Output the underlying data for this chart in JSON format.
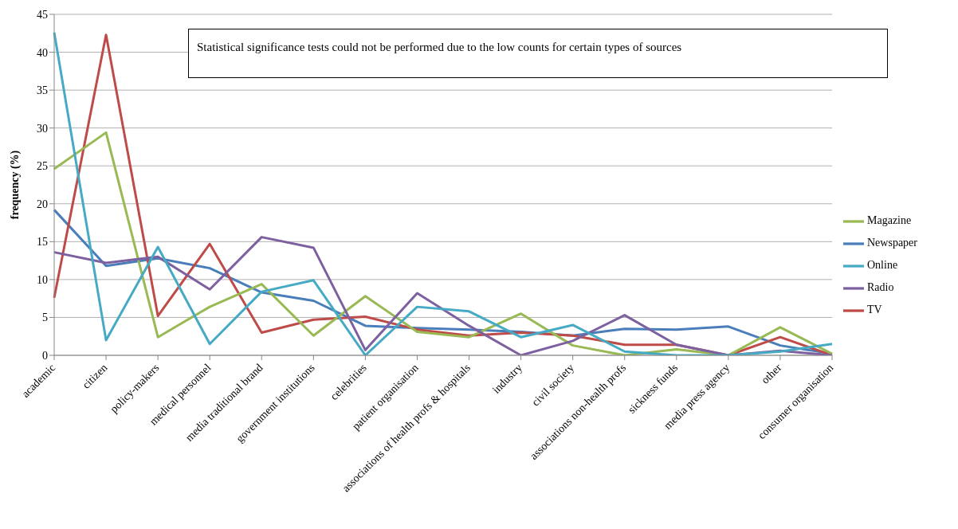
{
  "chart_data": {
    "type": "line",
    "ylabel": "frequency (%)",
    "annotations": [
      "Statistical significance tests could not be performed due to the low counts for certain types of sources"
    ],
    "categories": [
      "academic",
      "citizen",
      "policy-makers",
      "medical personnel",
      "media traditional brand",
      "government institutions",
      "celebrities",
      "patient organisation",
      "associations of health profs & hospitals",
      "industry",
      "civil society",
      "associations non-health profs",
      "sickness funds",
      "media press agency",
      "other",
      "consumer organisation"
    ],
    "series": [
      {
        "name": "Newspaper",
        "color": "#4a7ebb",
        "values": [
          19.2,
          11.8,
          12.8,
          11.5,
          8.3,
          7.2,
          3.9,
          3.6,
          3.4,
          3.1,
          2.6,
          3.5,
          3.4,
          3.8,
          1.3,
          0.2
        ]
      },
      {
        "name": "TV",
        "color": "#be4b48",
        "values": [
          7.6,
          42.3,
          5.2,
          14.7,
          3.0,
          4.7,
          5.1,
          3.4,
          2.6,
          3.0,
          2.6,
          1.4,
          1.4,
          0,
          2.4,
          0
        ]
      },
      {
        "name": "Magazine",
        "color": "#98b954",
        "values": [
          24.6,
          29.4,
          2.4,
          6.4,
          9.4,
          2.6,
          7.8,
          3.1,
          2.4,
          5.5,
          1.3,
          0,
          0.8,
          0,
          3.7,
          0.2
        ]
      },
      {
        "name": "Radio",
        "color": "#7d60a0",
        "values": [
          13.6,
          12.2,
          13.0,
          8.7,
          15.6,
          14.2,
          0.7,
          8.2,
          3.9,
          0,
          1.9,
          5.3,
          1.4,
          0,
          0.6,
          0
        ]
      },
      {
        "name": "Online",
        "color": "#46aac5",
        "values": [
          42.6,
          2.0,
          14.3,
          1.5,
          8.4,
          9.9,
          0,
          6.4,
          5.8,
          2.4,
          4.0,
          0.5,
          0,
          0,
          0.5,
          1.5
        ]
      }
    ],
    "ylim": [
      0,
      45
    ],
    "yticks": [
      0,
      5,
      10,
      15,
      20,
      25,
      30,
      35,
      40,
      45
    ],
    "grid": "y",
    "legend": "right",
    "marker": "none",
    "line_style": "solid"
  }
}
